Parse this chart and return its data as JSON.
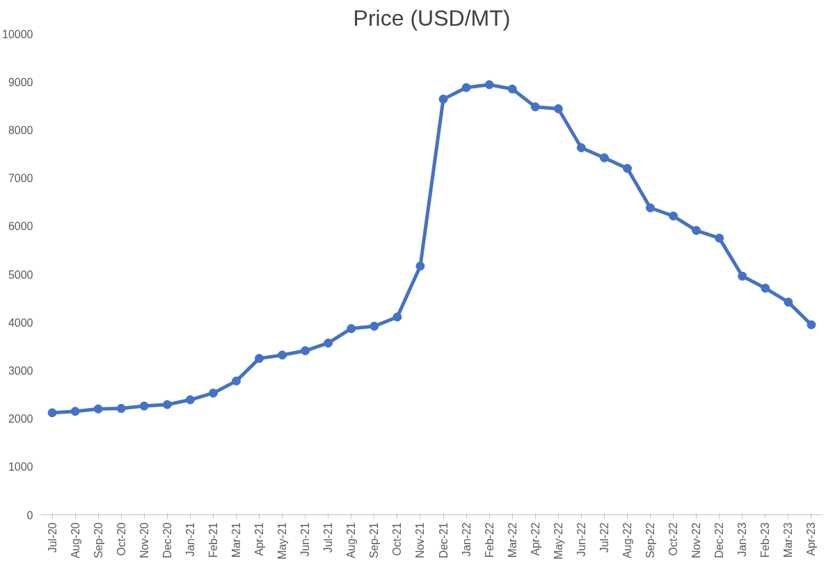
{
  "chart_data": {
    "type": "line",
    "title": "Price (USD/MT)",
    "categories": [
      "Jul-20",
      "Aug-20",
      "Sep-20",
      "Oct-20",
      "Nov-20",
      "Dec-20",
      "Jan-21",
      "Feb-21",
      "Mar-21",
      "Apr-21",
      "May-21",
      "Jun-21",
      "Jul-21",
      "Aug-21",
      "Sep-21",
      "Oct-21",
      "Nov-21",
      "Dec-21",
      "Jan-22",
      "Feb-22",
      "Mar-22",
      "Apr-22",
      "May-22",
      "Jun-22",
      "Jul-22",
      "Aug-22",
      "Sep-22",
      "Oct-22",
      "Nov-22",
      "Dec-22",
      "Jan-23",
      "Feb-23",
      "Mar-23",
      "Apr-23"
    ],
    "series": [
      {
        "color": "#4472c4",
        "values": [
          2120,
          2150,
          2200,
          2210,
          2260,
          2290,
          2390,
          2530,
          2780,
          3250,
          3320,
          3410,
          3570,
          3870,
          3920,
          4110,
          5170,
          8640,
          8880,
          8940,
          8850,
          8480,
          8440,
          7630,
          7420,
          7200,
          6380,
          6210,
          5910,
          5750,
          4960,
          4710,
          4420,
          3950
        ]
      }
    ],
    "ylim": [
      0,
      10000
    ],
    "yticks": [
      0,
      1000,
      2000,
      3000,
      4000,
      5000,
      6000,
      7000,
      8000,
      9000,
      10000
    ],
    "grid": false,
    "marker": "circle",
    "line_style": "solid"
  }
}
